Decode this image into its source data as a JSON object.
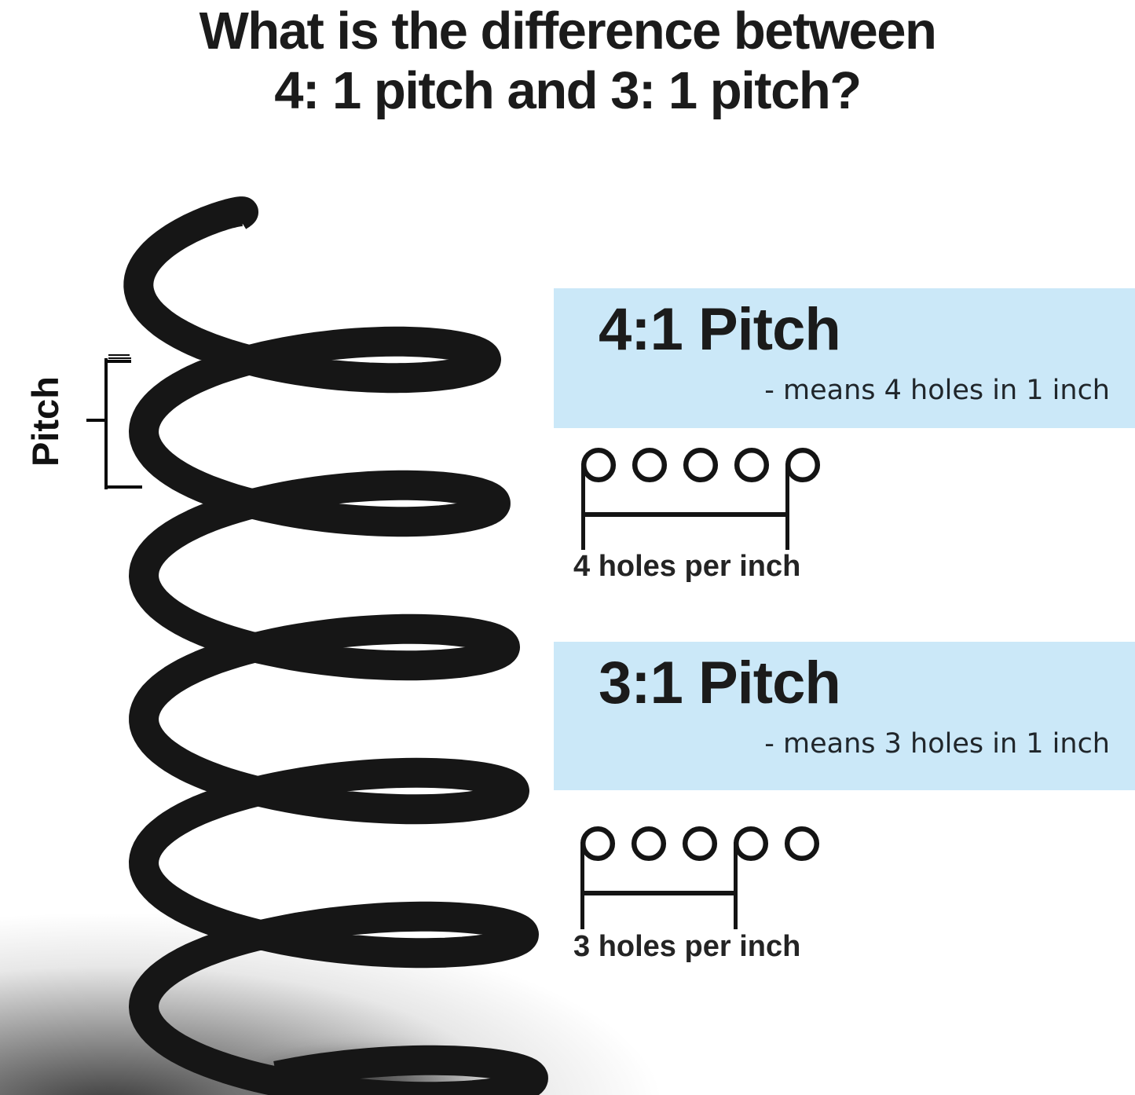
{
  "title": {
    "line1": "What is the difference between",
    "line2": "4: 1 pitch and 3: 1 pitch?"
  },
  "coil": {
    "pitch_label": "Pitch"
  },
  "sections": [
    {
      "heading": "4:1 Pitch",
      "subtext": "- means 4 holes in 1 inch",
      "caption": "4 holes per inch",
      "diagram": {
        "holes": 5,
        "stem_holes": [
          1,
          5
        ]
      }
    },
    {
      "heading": "3:1 Pitch",
      "subtext": "- means 3 holes in 1 inch",
      "caption": "3 holes per inch",
      "diagram": {
        "holes": 5,
        "stem_holes": [
          1,
          4
        ]
      }
    }
  ],
  "colors": {
    "panel_blue": "#cbe8f8",
    "text_dark": "#1b1b1b",
    "line_black": "#141414",
    "coil_black": "#161616"
  }
}
